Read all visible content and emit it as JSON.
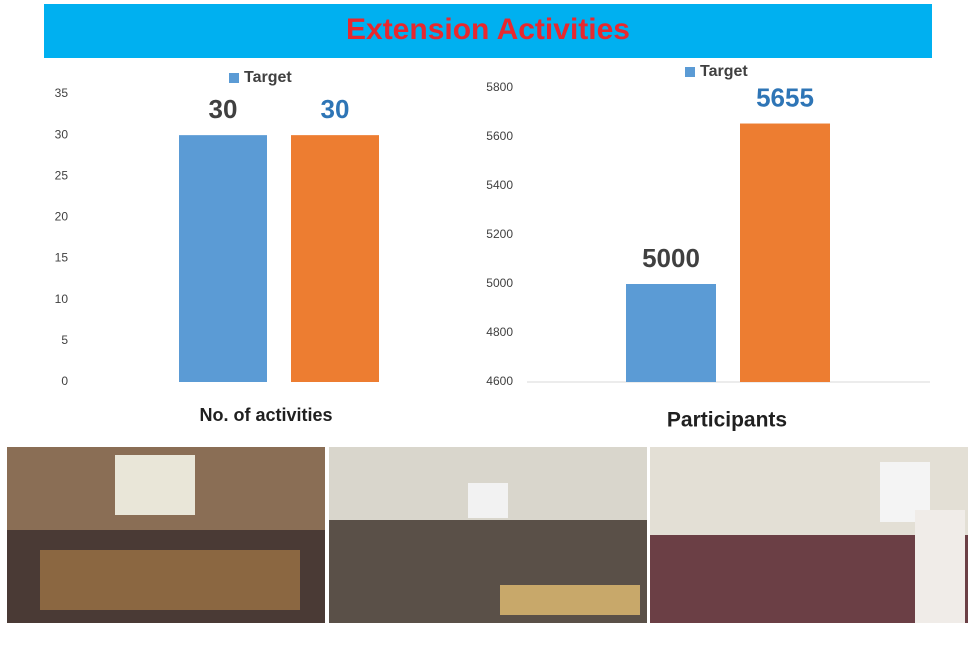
{
  "header": {
    "title": "Extension Activities"
  },
  "chart_data": [
    {
      "type": "bar",
      "xlabel": "No. of activities",
      "series": [
        {
          "name": "Target",
          "color": "#5b9bd5",
          "values": [
            30
          ]
        },
        {
          "color": "#ed7d31",
          "values": [
            30
          ]
        }
      ],
      "ylim": [
        0,
        35
      ],
      "yticks": [
        0,
        5,
        10,
        15,
        20,
        25,
        30,
        35
      ],
      "legend": "top"
    },
    {
      "type": "bar",
      "xlabel": "Participants",
      "series": [
        {
          "name": "Target",
          "color": "#5b9bd5",
          "values": [
            5000
          ]
        },
        {
          "color": "#ed7d31",
          "values": [
            5655
          ]
        }
      ],
      "ylim": [
        4600,
        5800
      ],
      "yticks": [
        4600,
        4800,
        5000,
        5200,
        5400,
        5600,
        5800
      ],
      "legend": "top"
    }
  ]
}
